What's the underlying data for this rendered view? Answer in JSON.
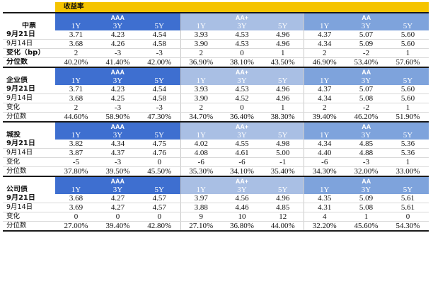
{
  "title": "收益率",
  "ratings": [
    "AAA",
    "AA+",
    "AA"
  ],
  "tenors": [
    "1Y",
    "3Y",
    "5Y"
  ],
  "sections": [
    {
      "name": "中票",
      "rows": [
        {
          "label": "9月21日",
          "values": [
            "3.71",
            "4.23",
            "4.54",
            "3.93",
            "4.53",
            "4.96",
            "4.37",
            "5.07",
            "5.60"
          ]
        },
        {
          "label": "9月14日",
          "values": [
            "3.68",
            "4.26",
            "4.58",
            "3.90",
            "4.53",
            "4.96",
            "4.34",
            "5.09",
            "5.60"
          ]
        },
        {
          "label": "变化（bp）",
          "values": [
            "2",
            "-3",
            "-3",
            "2",
            "0",
            "1",
            "2",
            "-2",
            "1"
          ]
        },
        {
          "label": "分位数",
          "values": [
            "40.20%",
            "41.40%",
            "42.00%",
            "36.90%",
            "38.10%",
            "43.50%",
            "46.90%",
            "53.40%",
            "57.60%"
          ]
        }
      ]
    },
    {
      "name": "企业债",
      "rows": [
        {
          "label": "9月21日",
          "values": [
            "3.71",
            "4.23",
            "4.54",
            "3.93",
            "4.53",
            "4.96",
            "4.37",
            "5.07",
            "5.60"
          ]
        },
        {
          "label": "9月14日",
          "values": [
            "3.68",
            "4.25",
            "4.58",
            "3.90",
            "4.52",
            "4.96",
            "4.34",
            "5.08",
            "5.60"
          ]
        },
        {
          "label": "变化",
          "values": [
            "2",
            "-3",
            "-3",
            "2",
            "0",
            "1",
            "2",
            "-2",
            "1"
          ]
        },
        {
          "label": "分位数",
          "values": [
            "44.60%",
            "58.90%",
            "47.30%",
            "34.70%",
            "36.40%",
            "38.30%",
            "39.40%",
            "46.20%",
            "51.90%"
          ]
        }
      ]
    },
    {
      "name": "城投",
      "rows": [
        {
          "label": "9月21日",
          "values": [
            "3.82",
            "4.34",
            "4.75",
            "4.02",
            "4.55",
            "4.98",
            "4.34",
            "4.85",
            "5.36"
          ]
        },
        {
          "label": "9月14日",
          "values": [
            "3.87",
            "4.37",
            "4.76",
            "4.08",
            "4.61",
            "5.00",
            "4.40",
            "4.88",
            "5.36"
          ]
        },
        {
          "label": "变化",
          "values": [
            "-5",
            "-3",
            "0",
            "-6",
            "-6",
            "-1",
            "-6",
            "-3",
            "1"
          ]
        },
        {
          "label": "分位数",
          "values": [
            "37.80%",
            "39.50%",
            "45.50%",
            "35.30%",
            "34.10%",
            "35.40%",
            "34.30%",
            "32.00%",
            "33.00%"
          ]
        }
      ]
    },
    {
      "name": "公司债",
      "rows": [
        {
          "label": "9月21日",
          "values": [
            "3.68",
            "4.27",
            "4.57",
            "3.97",
            "4.56",
            "4.96",
            "4.35",
            "5.09",
            "5.61"
          ]
        },
        {
          "label": "9月14日",
          "values": [
            "3.69",
            "4.27",
            "4.57",
            "3.88",
            "4.46",
            "4.85",
            "4.31",
            "5.08",
            "5.61"
          ]
        },
        {
          "label": "变化",
          "values": [
            "0",
            "0",
            "0",
            "9",
            "10",
            "12",
            "4",
            "1",
            "0"
          ]
        },
        {
          "label": "分位数",
          "values": [
            "27.00%",
            "39.40%",
            "42.80%",
            "27.10%",
            "36.80%",
            "44.00%",
            "32.20%",
            "45.60%",
            "54.30%"
          ]
        }
      ]
    }
  ],
  "colors": {
    "title_bg": "#f5c400",
    "aaa_bg": "#3e6fd0",
    "aaplus_bg": "#a9bfe4",
    "aa_bg": "#7ea3dc"
  }
}
